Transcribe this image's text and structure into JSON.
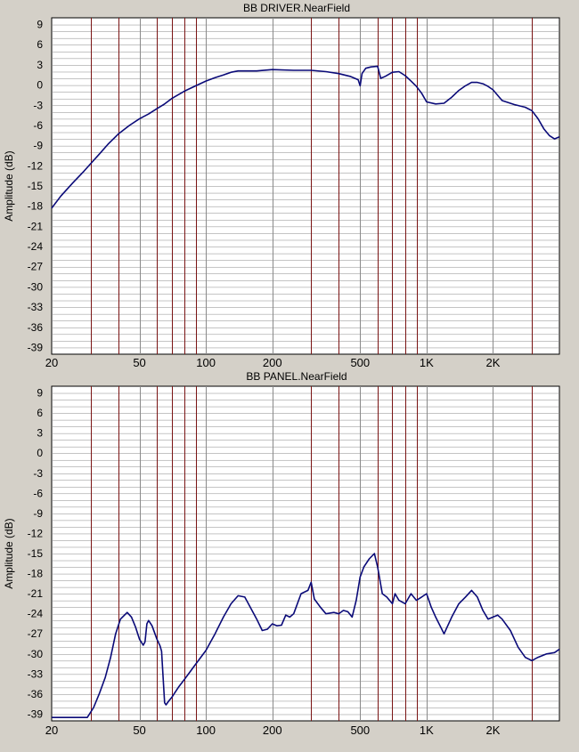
{
  "colors": {
    "window_bg": "#d4d0c8",
    "plot_bg": "#ffffff",
    "grid": "#8a8a8a",
    "marker": "#7a1414",
    "curve": "#0a0a78",
    "text": "#000000"
  },
  "chart_data": [
    {
      "type": "line",
      "title": "BB DRIVER.NearField",
      "ylabel": "Amplitude (dB)",
      "xlabel": "",
      "xscale": "log",
      "xlim": [
        20,
        4000
      ],
      "ylim": [
        -40,
        10
      ],
      "grid": true,
      "x_tick_labels": [
        {
          "value": 20,
          "label": "20"
        },
        {
          "value": 50,
          "label": "50"
        },
        {
          "value": 100,
          "label": "100"
        },
        {
          "value": 200,
          "label": "200"
        },
        {
          "value": 500,
          "label": "500"
        },
        {
          "value": 1000,
          "label": "1K"
        },
        {
          "value": 2000,
          "label": "2K"
        }
      ],
      "y_ticks": [
        9,
        6,
        3,
        0,
        -3,
        -6,
        -9,
        -12,
        -15,
        -18,
        -21,
        -24,
        -27,
        -30,
        -33,
        -36,
        -39
      ],
      "marker_lines_x": [
        30,
        40,
        60,
        70,
        80,
        90,
        300,
        400,
        600,
        700,
        800,
        900,
        3000
      ],
      "series": [
        {
          "x": [
            20,
            22,
            25,
            28,
            30,
            33,
            36,
            40,
            45,
            50,
            55,
            60,
            65,
            70,
            80,
            90,
            100,
            110,
            120,
            130,
            140,
            150,
            170,
            200,
            250,
            300,
            350,
            400,
            450,
            490,
            500,
            510,
            530,
            560,
            600,
            620,
            650,
            700,
            750,
            800,
            850,
            900,
            950,
            1000,
            1100,
            1200,
            1300,
            1400,
            1500,
            1600,
            1700,
            1800,
            1900,
            2000,
            2200,
            2500,
            2800,
            3000,
            3200,
            3400,
            3600,
            3800,
            4000
          ],
          "y": [
            -18.3,
            -16.5,
            -14.5,
            -12.8,
            -11.7,
            -10.2,
            -8.8,
            -7.3,
            -6.0,
            -5.0,
            -4.3,
            -3.5,
            -2.8,
            -2.0,
            -0.9,
            -0.1,
            0.6,
            1.1,
            1.5,
            1.9,
            2.1,
            2.1,
            2.1,
            2.3,
            2.2,
            2.2,
            2.0,
            1.7,
            1.3,
            0.8,
            -0.1,
            1.7,
            2.5,
            2.7,
            2.8,
            1.0,
            1.3,
            1.9,
            2.0,
            1.4,
            0.6,
            -0.2,
            -1.2,
            -2.5,
            -2.8,
            -2.7,
            -1.8,
            -0.8,
            -0.1,
            0.4,
            0.4,
            0.2,
            -0.2,
            -0.7,
            -2.3,
            -2.9,
            -3.3,
            -3.8,
            -5.0,
            -6.5,
            -7.5,
            -8.0,
            -7.7
          ]
        }
      ]
    },
    {
      "type": "line",
      "title": "BB PANEL.NearField",
      "ylabel": "Amplitude (dB)",
      "xlabel": "",
      "xscale": "log",
      "xlim": [
        20,
        4000
      ],
      "ylim": [
        -40,
        10
      ],
      "grid": true,
      "x_tick_labels": [
        {
          "value": 20,
          "label": "20"
        },
        {
          "value": 50,
          "label": "50"
        },
        {
          "value": 100,
          "label": "100"
        },
        {
          "value": 200,
          "label": "200"
        },
        {
          "value": 500,
          "label": "500"
        },
        {
          "value": 1000,
          "label": "1K"
        },
        {
          "value": 2000,
          "label": "2K"
        }
      ],
      "y_ticks": [
        9,
        6,
        3,
        0,
        -3,
        -6,
        -9,
        -12,
        -15,
        -18,
        -21,
        -24,
        -27,
        -30,
        -33,
        -36,
        -39
      ],
      "marker_lines_x": [
        30,
        40,
        60,
        70,
        80,
        90,
        300,
        400,
        600,
        700,
        800,
        900,
        3000
      ],
      "series": [
        {
          "x": [
            20,
            25,
            29,
            31,
            33,
            35,
            37,
            39,
            41,
            44,
            46,
            48,
            50,
            52,
            53,
            54,
            55,
            57,
            60,
            62,
            63,
            64,
            65,
            66,
            68,
            70,
            75,
            80,
            90,
            100,
            110,
            120,
            130,
            140,
            150,
            170,
            180,
            190,
            200,
            210,
            220,
            230,
            240,
            250,
            270,
            290,
            300,
            310,
            330,
            350,
            380,
            400,
            420,
            440,
            460,
            480,
            500,
            520,
            550,
            580,
            600,
            630,
            660,
            700,
            720,
            750,
            800,
            850,
            900,
            950,
            1000,
            1050,
            1100,
            1200,
            1300,
            1400,
            1500,
            1600,
            1700,
            1800,
            1900,
            2000,
            2100,
            2200,
            2400,
            2600,
            2800,
            3000,
            3200,
            3500,
            3800,
            4000
          ],
          "y": [
            -39.5,
            -39.5,
            -39.5,
            -38.0,
            -35.8,
            -33.5,
            -30.5,
            -27.0,
            -24.8,
            -23.8,
            -24.5,
            -26.0,
            -27.8,
            -28.7,
            -28.2,
            -25.5,
            -25.0,
            -25.8,
            -27.8,
            -28.8,
            -29.6,
            -33.5,
            -37.3,
            -37.6,
            -37.0,
            -36.5,
            -35.0,
            -33.8,
            -31.5,
            -29.5,
            -27.0,
            -24.5,
            -22.5,
            -21.3,
            -21.5,
            -24.8,
            -26.5,
            -26.3,
            -25.5,
            -25.8,
            -25.7,
            -24.2,
            -24.5,
            -24.0,
            -21.0,
            -20.5,
            -19.3,
            -21.8,
            -23.0,
            -24.0,
            -23.8,
            -24.0,
            -23.5,
            -23.7,
            -24.5,
            -22.0,
            -18.5,
            -17.0,
            -15.8,
            -15.0,
            -17.0,
            -21.0,
            -21.5,
            -22.5,
            -21.0,
            -22.0,
            -22.5,
            -21.0,
            -22.0,
            -21.5,
            -21.0,
            -23.0,
            -24.5,
            -27.0,
            -24.5,
            -22.5,
            -21.5,
            -20.5,
            -21.5,
            -23.5,
            -24.8,
            -24.5,
            -24.2,
            -24.8,
            -26.5,
            -29.0,
            -30.5,
            -31.0,
            -30.5,
            -30.0,
            -29.8,
            -29.3
          ]
        }
      ]
    }
  ]
}
